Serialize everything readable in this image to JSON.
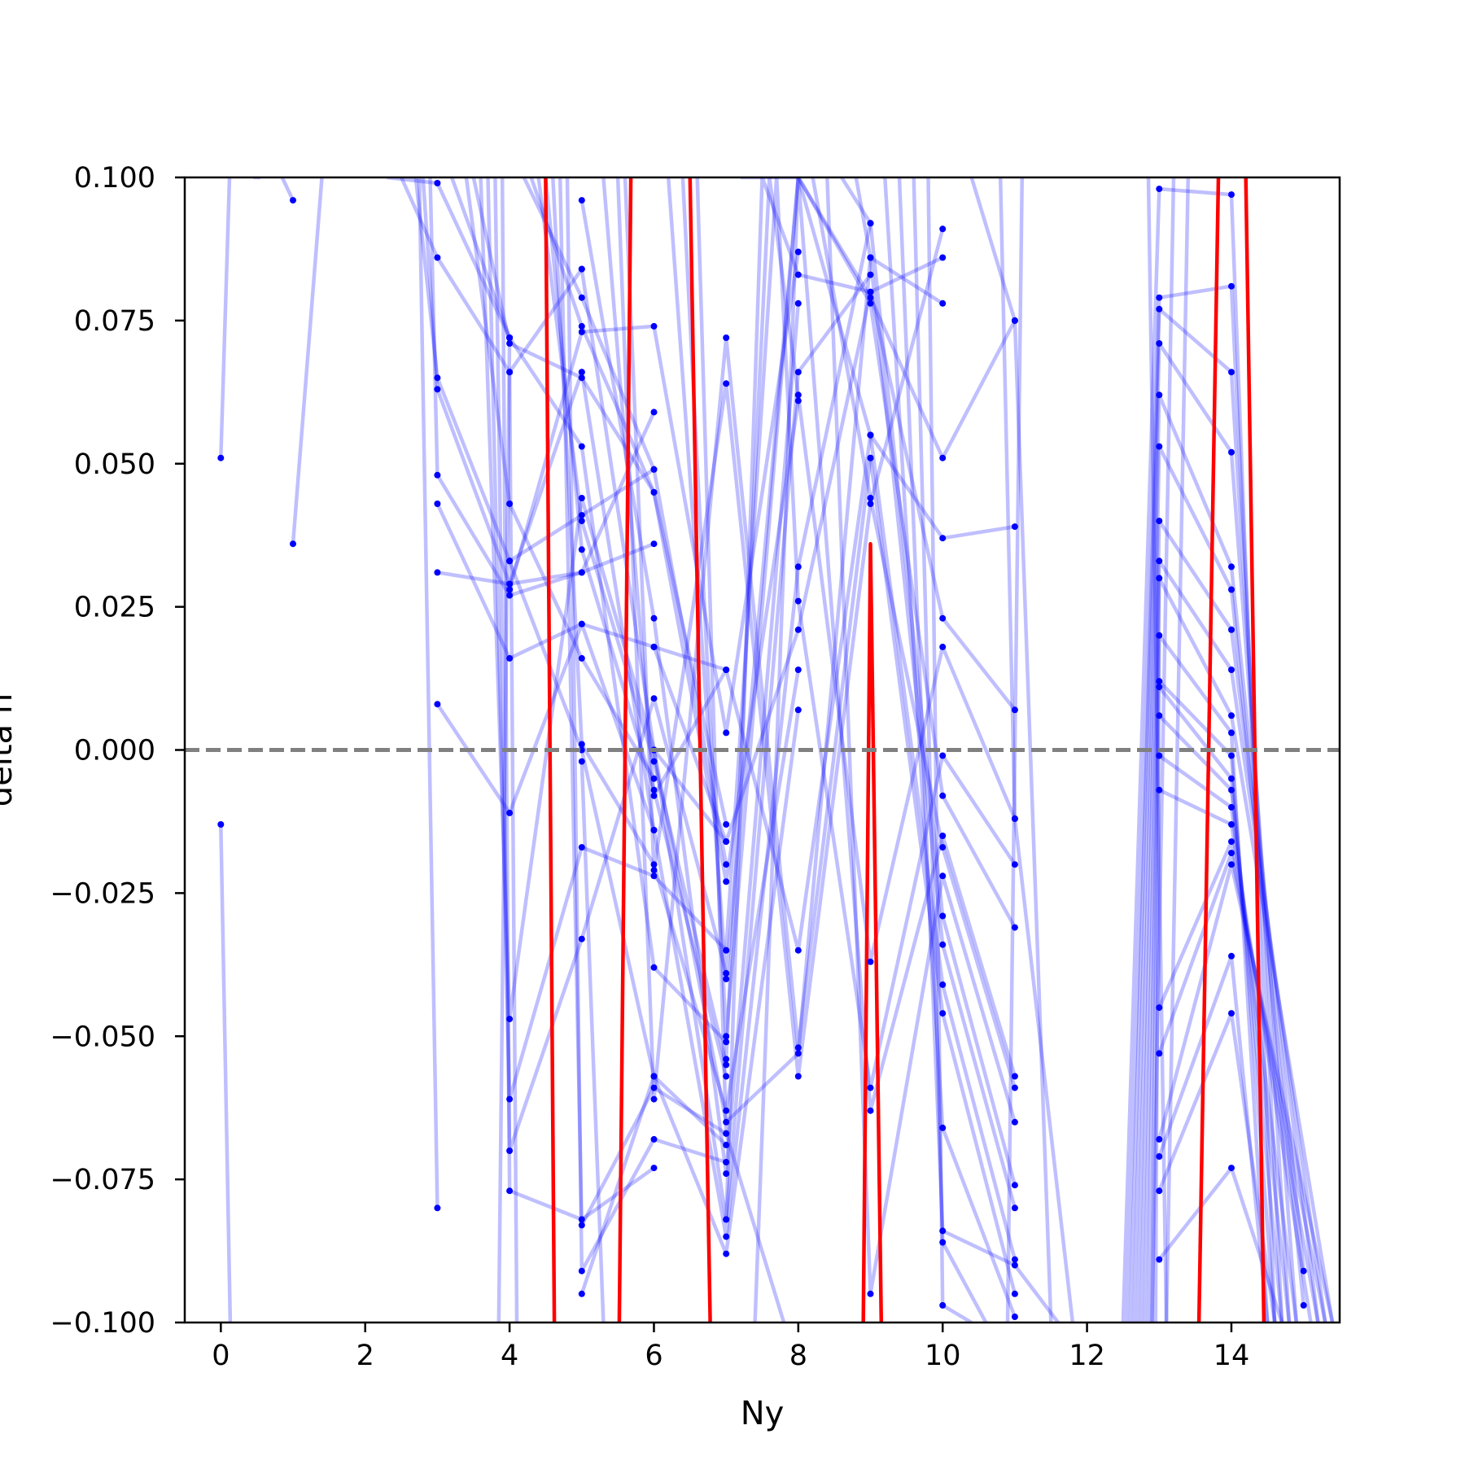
{
  "chart_data": {
    "type": "line",
    "title": "",
    "xlabel": "Ny",
    "ylabel": "delta h",
    "xlim": [
      -0.5,
      15.5
    ],
    "ylim": [
      -0.1,
      0.1
    ],
    "x_ticks": [
      0,
      2,
      4,
      6,
      8,
      10,
      12,
      14
    ],
    "x_tick_labels": [
      "0",
      "2",
      "4",
      "6",
      "8",
      "10",
      "12",
      "14"
    ],
    "y_ticks": [
      -0.1,
      -0.075,
      -0.05,
      -0.025,
      0.0,
      0.025,
      0.05,
      0.075,
      0.1
    ],
    "y_tick_labels": [
      "−0.100",
      "−0.075",
      "−0.050",
      "−0.025",
      "0.000",
      "0.025",
      "0.050",
      "0.075",
      "0.100"
    ],
    "reference_line": {
      "y": 0.0,
      "style": "dashed",
      "color": "#808080"
    },
    "grid": false,
    "legend": "none",
    "colors": {
      "samples": "#0000ff",
      "highlight": "#ff0000",
      "reference": "#808080"
    },
    "highlight_series": [
      {
        "x": [
          4.5,
          4.62
        ],
        "y": [
          0.1,
          -0.1
        ]
      },
      {
        "x": [
          5.52,
          5.68
        ],
        "y": [
          -0.1,
          0.1
        ]
      },
      {
        "x": [
          6.5,
          6.78
        ],
        "y": [
          0.1,
          -0.1
        ]
      },
      {
        "x": [
          8.9,
          9.0,
          9.15
        ],
        "y": [
          -0.1,
          0.036,
          -0.1
        ]
      },
      {
        "x": [
          13.55,
          13.82
        ],
        "y": [
          -0.1,
          0.1
        ]
      },
      {
        "x": [
          14.2,
          14.45
        ],
        "y": [
          0.1,
          -0.1
        ]
      }
    ],
    "series": [
      {
        "x": [
          0,
          0.12
        ],
        "y": [
          0.051,
          0.1
        ]
      },
      {
        "x": [
          0,
          0.13
        ],
        "y": [
          -0.013,
          -0.1
        ]
      },
      {
        "x": [
          0.45,
          0.55
        ],
        "y": [
          0.1,
          0.1
        ]
      },
      {
        "x": [
          1,
          0.85
        ],
        "y": [
          0.096,
          0.1
        ]
      },
      {
        "x": [
          1,
          1.4
        ],
        "y": [
          0.036,
          0.1
        ]
      },
      {
        "x": [
          2.3,
          3,
          4
        ],
        "y": [
          0.1,
          0.099,
          0.072
        ]
      },
      {
        "x": [
          2.5,
          3,
          4,
          5
        ],
        "y": [
          0.1,
          0.086,
          0.066,
          0.084
        ]
      },
      {
        "x": [
          2.7,
          3,
          4,
          5,
          6
        ],
        "y": [
          0.1,
          0.065,
          0.033,
          0.041,
          0.049
        ]
      },
      {
        "x": [
          2.8,
          3,
          4,
          5
        ],
        "y": [
          0.1,
          0.063,
          0.029,
          0.066
        ]
      },
      {
        "x": [
          2.9,
          3,
          4,
          5,
          6
        ],
        "y": [
          0.1,
          0.048,
          0.027,
          0.031,
          0.036
        ]
      },
      {
        "x": [
          3,
          4,
          5,
          6,
          7
        ],
        "y": [
          0.043,
          0.016,
          0.022,
          0.018,
          0.014
        ]
      },
      {
        "x": [
          3,
          4,
          5,
          6
        ],
        "y": [
          0.031,
          0.029,
          0.031,
          0.059
        ]
      },
      {
        "x": [
          3,
          4,
          5,
          6
        ],
        "y": [
          0.008,
          -0.011,
          0.022,
          -0.014
        ]
      },
      {
        "x": [
          3,
          2.75
        ],
        "y": [
          -0.08,
          0.1
        ]
      },
      {
        "x": [
          3.2,
          4,
          5,
          6,
          7
        ],
        "y": [
          0.1,
          0.072,
          0.053,
          -0.038,
          -0.051
        ]
      },
      {
        "x": [
          3.4,
          4,
          5,
          6
        ],
        "y": [
          0.1,
          0.043,
          0.016,
          -0.005
        ]
      },
      {
        "x": [
          3.5,
          4,
          5,
          6,
          7
        ],
        "y": [
          0.1,
          0.071,
          0.065,
          0.045,
          -0.013
        ]
      },
      {
        "x": [
          3.6,
          4,
          5,
          6,
          7
        ],
        "y": [
          0.1,
          -0.047,
          0.044,
          0.0,
          -0.016
        ]
      },
      {
        "x": [
          3.7,
          4,
          5,
          6,
          7
        ],
        "y": [
          0.1,
          -0.061,
          -0.017,
          -0.022,
          -0.035
        ]
      },
      {
        "x": [
          3.8,
          4,
          5,
          6,
          7
        ],
        "y": [
          0.1,
          -0.07,
          -0.033,
          0.009,
          -0.039
        ]
      },
      {
        "x": [
          3.9,
          4,
          5,
          6
        ],
        "y": [
          0.1,
          -0.077,
          -0.082,
          -0.073
        ]
      },
      {
        "x": [
          4,
          3.85
        ],
        "y": [
          0.072,
          -0.1
        ]
      },
      {
        "x": [
          4,
          4.1
        ],
        "y": [
          0.066,
          -0.1
        ]
      },
      {
        "x": [
          4,
          5,
          6,
          7
        ],
        "y": [
          0.033,
          0.0,
          -0.057,
          -0.069
        ]
      },
      {
        "x": [
          4,
          5,
          6,
          7,
          8
        ],
        "y": [
          0.028,
          0.073,
          0.074,
          0.003,
          0.087
        ]
      },
      {
        "x": [
          4.2,
          5,
          6,
          7
        ],
        "y": [
          0.1,
          0.079,
          0.049,
          -0.02
        ]
      },
      {
        "x": [
          4.3,
          5,
          6,
          7,
          8
        ],
        "y": [
          0.1,
          0.074,
          0.045,
          -0.023,
          0.061
        ]
      },
      {
        "x": [
          4.4,
          5,
          6,
          7
        ],
        "y": [
          0.1,
          0.04,
          -0.002,
          -0.055
        ]
      },
      {
        "x": [
          4.5,
          5,
          6,
          7
        ],
        "y": [
          0.1,
          0.035,
          -0.007,
          -0.057
        ]
      },
      {
        "x": [
          4.6,
          5,
          6,
          7,
          8
        ],
        "y": [
          0.1,
          0.001,
          -0.02,
          -0.063,
          0.014
        ]
      },
      {
        "x": [
          4.7,
          5,
          6,
          7
        ],
        "y": [
          0.1,
          -0.083,
          -0.059,
          -0.067
        ]
      },
      {
        "x": [
          4.8,
          5,
          6,
          7
        ],
        "y": [
          0.1,
          -0.091,
          -0.068,
          -0.072
        ]
      },
      {
        "x": [
          5,
          6,
          7,
          8
        ],
        "y": [
          0.096,
          0.023,
          -0.074,
          0.078
        ]
      },
      {
        "x": [
          5,
          6,
          7,
          8,
          9
        ],
        "y": [
          0.084,
          0.0,
          -0.082,
          0.066,
          0.083
        ]
      },
      {
        "x": [
          5,
          6,
          7,
          8,
          9
        ],
        "y": [
          0.066,
          -0.014,
          -0.085,
          0.032,
          0.092
        ]
      },
      {
        "x": [
          5,
          6,
          7,
          8
        ],
        "y": [
          -0.095,
          -0.057,
          -0.088,
          0.007
        ]
      },
      {
        "x": [
          5,
          5.3
        ],
        "y": [
          -0.002,
          -0.1
        ]
      },
      {
        "x": [
          5.3,
          6,
          7,
          8,
          9
        ],
        "y": [
          0.1,
          -0.008,
          0.014,
          -0.035,
          0.055
        ]
      },
      {
        "x": [
          5.5,
          6,
          7,
          8,
          9
        ],
        "y": [
          0.1,
          -0.061,
          0.072,
          -0.052,
          0.051
        ]
      },
      {
        "x": [
          5.6,
          6,
          7,
          8,
          9,
          10
        ],
        "y": [
          0.1,
          -0.021,
          0.064,
          -0.057,
          0.043,
          0.091
        ]
      },
      {
        "x": [
          6,
          7,
          8,
          9,
          10
        ],
        "y": [
          0.018,
          -0.016,
          0.021,
          0.08,
          0.086
        ]
      },
      {
        "x": [
          6,
          7,
          8,
          9,
          10
        ],
        "y": [
          0.0,
          -0.065,
          -0.053,
          0.086,
          0.078
        ]
      },
      {
        "x": [
          6.2,
          7,
          8,
          9,
          10,
          11
        ],
        "y": [
          0.1,
          -0.04,
          0.1,
          0.079,
          0.051,
          0.075
        ]
      },
      {
        "x": [
          6.4,
          7,
          8,
          9,
          10,
          11
        ],
        "y": [
          0.1,
          -0.05,
          0.1,
          0.055,
          0.037,
          0.039
        ]
      },
      {
        "x": [
          6.6,
          7,
          7.8
        ],
        "y": [
          0.1,
          -0.067,
          -0.1
        ]
      },
      {
        "x": [
          7,
          7.5,
          8,
          9,
          10,
          11
        ],
        "y": [
          -0.082,
          0.1,
          0.083,
          0.08,
          0.023,
          0.007
        ]
      },
      {
        "x": [
          7,
          7.6,
          8,
          9,
          10,
          11
        ],
        "y": [
          -0.054,
          0.1,
          0.062,
          -0.037,
          0.018,
          -0.012
        ]
      },
      {
        "x": [
          7,
          7.7,
          8,
          9,
          10,
          11
        ],
        "y": [
          -0.035,
          0.1,
          0.026,
          -0.059,
          -0.001,
          -0.02
        ]
      },
      {
        "x": [
          7.2,
          8,
          9,
          10,
          11
        ],
        "y": [
          0.1,
          0.1,
          0.078,
          -0.008,
          -0.031
        ]
      },
      {
        "x": [
          7.4,
          8,
          9,
          10,
          11
        ],
        "y": [
          -0.1,
          0.1,
          -0.063,
          -0.015,
          -0.057
        ]
      },
      {
        "x": [
          8.2,
          9,
          10,
          11
        ],
        "y": [
          0.1,
          0.044,
          -0.017,
          -0.059
        ]
      },
      {
        "x": [
          8.4,
          9,
          10,
          11
        ],
        "y": [
          0.1,
          -0.095,
          -0.022,
          -0.065
        ]
      },
      {
        "x": [
          8.6,
          9,
          10,
          11
        ],
        "y": [
          0.1,
          0.092,
          -0.029,
          -0.076
        ]
      },
      {
        "x": [
          8.8,
          9,
          10,
          11
        ],
        "y": [
          0.1,
          0.086,
          -0.034,
          -0.08
        ]
      },
      {
        "x": [
          9,
          10,
          11
        ],
        "y": [
          0.055,
          -0.041,
          -0.089
        ]
      },
      {
        "x": [
          9,
          10,
          11
        ],
        "y": [
          0.051,
          -0.046,
          -0.095
        ]
      },
      {
        "x": [
          9.2,
          10,
          11
        ],
        "y": [
          0.1,
          -0.066,
          -0.099
        ]
      },
      {
        "x": [
          9.4,
          10,
          11,
          11.6
        ],
        "y": [
          0.1,
          -0.084,
          -0.09,
          -0.1
        ]
      },
      {
        "x": [
          9.6,
          10,
          10.6
        ],
        "y": [
          0.1,
          -0.086,
          -0.1
        ]
      },
      {
        "x": [
          9.8,
          10,
          10.4
        ],
        "y": [
          0.1,
          -0.097,
          -0.1
        ]
      },
      {
        "x": [
          10.4,
          11,
          11.5
        ],
        "y": [
          0.1,
          0.075,
          -0.1
        ]
      },
      {
        "x": [
          10.8,
          11,
          11.8
        ],
        "y": [
          0.1,
          -0.012,
          -0.1
        ]
      },
      {
        "x": [
          11.1,
          10.9
        ],
        "y": [
          0.1,
          -0.1
        ]
      },
      {
        "x": [
          12.5,
          13,
          14,
          14.6
        ],
        "y": [
          -0.1,
          0.098,
          0.097,
          -0.1
        ]
      },
      {
        "x": [
          12.55,
          13,
          14,
          14.7
        ],
        "y": [
          -0.1,
          0.079,
          0.081,
          -0.1
        ]
      },
      {
        "x": [
          12.6,
          13,
          14,
          14.8
        ],
        "y": [
          -0.1,
          0.077,
          0.066,
          -0.1
        ]
      },
      {
        "x": [
          12.65,
          13,
          14,
          14.9
        ],
        "y": [
          -0.1,
          0.071,
          0.052,
          -0.1
        ]
      },
      {
        "x": [
          12.7,
          13,
          14,
          15
        ],
        "y": [
          -0.1,
          0.062,
          0.032,
          -0.091
        ]
      },
      {
        "x": [
          12.75,
          13,
          14,
          15
        ],
        "y": [
          -0.1,
          0.053,
          0.028,
          -0.097
        ]
      },
      {
        "x": [
          12.8,
          13,
          14,
          15.2
        ],
        "y": [
          -0.1,
          0.04,
          0.021,
          -0.1
        ]
      },
      {
        "x": [
          12.85,
          13,
          14,
          15.3
        ],
        "y": [
          -0.1,
          0.033,
          0.014,
          -0.1
        ]
      },
      {
        "x": [
          12.9,
          13,
          14,
          15.4
        ],
        "y": [
          -0.1,
          0.03,
          0.006,
          -0.1
        ]
      },
      {
        "x": [
          12.95,
          13,
          14,
          14.5
        ],
        "y": [
          -0.1,
          0.02,
          0.003,
          -0.1
        ]
      },
      {
        "x": [
          13,
          14,
          14.6
        ],
        "y": [
          0.012,
          -0.001,
          -0.1
        ]
      },
      {
        "x": [
          13,
          14,
          14.7
        ],
        "y": [
          0.011,
          -0.005,
          -0.1
        ]
      },
      {
        "x": [
          13,
          14,
          14.8
        ],
        "y": [
          0.006,
          -0.007,
          -0.1
        ]
      },
      {
        "x": [
          13,
          14,
          14.9
        ],
        "y": [
          -0.001,
          -0.01,
          -0.1
        ]
      },
      {
        "x": [
          13,
          14,
          15.1
        ],
        "y": [
          -0.007,
          -0.013,
          -0.1
        ]
      },
      {
        "x": [
          13,
          14,
          15.2
        ],
        "y": [
          -0.045,
          -0.016,
          -0.1
        ]
      },
      {
        "x": [
          13,
          14,
          15.3
        ],
        "y": [
          -0.053,
          -0.018,
          -0.1
        ]
      },
      {
        "x": [
          13,
          14,
          15.4
        ],
        "y": [
          -0.068,
          -0.02,
          -0.1
        ]
      },
      {
        "x": [
          13,
          14,
          14.5
        ],
        "y": [
          -0.071,
          -0.036,
          -0.1
        ]
      },
      {
        "x": [
          13,
          14,
          14.6
        ],
        "y": [
          -0.077,
          -0.046,
          -0.1
        ]
      },
      {
        "x": [
          13,
          14,
          14.7
        ],
        "y": [
          -0.089,
          -0.073,
          -0.1
        ]
      },
      {
        "x": [
          12.85,
          13.1
        ],
        "y": [
          0.1,
          -0.1
        ]
      },
      {
        "x": [
          13.2,
          12.9
        ],
        "y": [
          0.1,
          -0.1
        ]
      },
      {
        "x": [
          13.4,
          13.1
        ],
        "y": [
          0.1,
          -0.1
        ]
      }
    ]
  }
}
